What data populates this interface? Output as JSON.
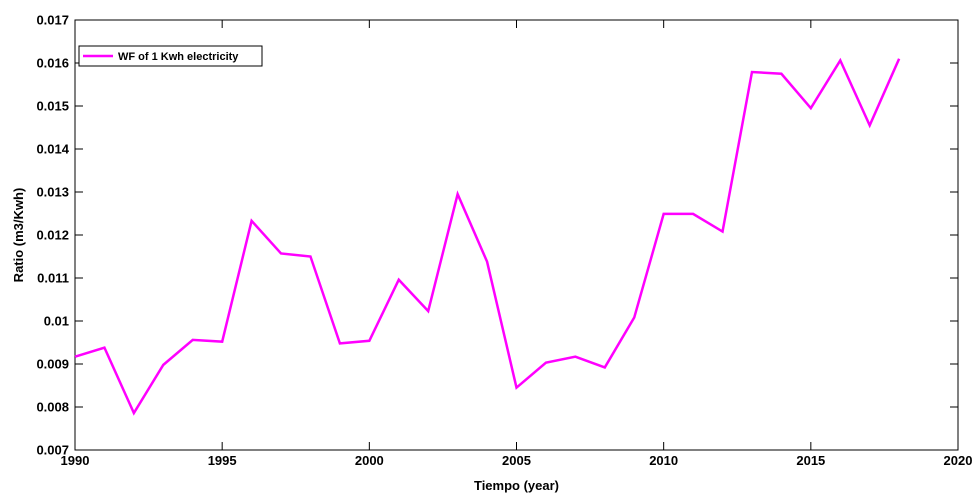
{
  "chart_data": {
    "type": "line",
    "title": "",
    "xlabel": "Tiempo (year)",
    "ylabel": "Ratio (m3/Kwh)",
    "xlim": [
      1990,
      2020
    ],
    "ylim": [
      0.007,
      0.017
    ],
    "xticks": [
      1990,
      1995,
      2000,
      2005,
      2010,
      2015,
      2020
    ],
    "yticks": [
      0.007,
      0.008,
      0.009,
      0.01,
      0.011,
      0.012,
      0.013,
      0.014,
      0.015,
      0.016,
      0.017
    ],
    "xtick_labels": [
      "1990",
      "1995",
      "2000",
      "2005",
      "2010",
      "2015",
      "2020"
    ],
    "ytick_labels": [
      "0.007",
      "0.008",
      "0.009",
      "0.01",
      "0.011",
      "0.012",
      "0.013",
      "0.014",
      "0.015",
      "0.016",
      "0.017"
    ],
    "grid": false,
    "legend_position": "top-left",
    "series": [
      {
        "name": "WF of 1 Kwh electricity",
        "color": "#ff00ff",
        "x": [
          1990,
          1991,
          1992,
          1993,
          1994,
          1995,
          1996,
          1997,
          1998,
          1999,
          2000,
          2001,
          2002,
          2003,
          2004,
          2005,
          2006,
          2007,
          2008,
          2009,
          2010,
          2011,
          2012,
          2013,
          2014,
          2015,
          2016,
          2017,
          2018
        ],
        "y": [
          0.00917,
          0.00938,
          0.00786,
          0.00898,
          0.00956,
          0.00952,
          0.01233,
          0.01157,
          0.0115,
          0.00948,
          0.00954,
          0.01096,
          0.01023,
          0.01295,
          0.01138,
          0.00845,
          0.00903,
          0.00917,
          0.00892,
          0.01008,
          0.01249,
          0.01249,
          0.01208,
          0.01579,
          0.01575,
          0.01495,
          0.01606,
          0.01455,
          0.0161
        ]
      }
    ]
  }
}
